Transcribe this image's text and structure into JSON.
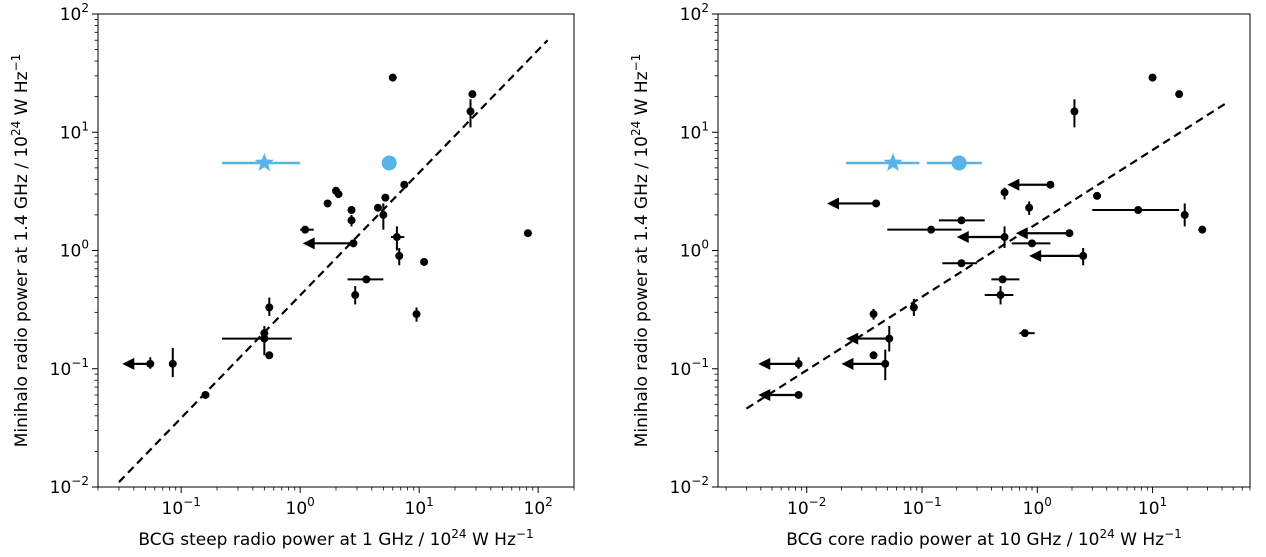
{
  "chart_data": [
    {
      "type": "scatter",
      "panel": "left",
      "xscale": "log",
      "yscale": "log",
      "xlim": [
        0.02,
        200
      ],
      "ylim": [
        0.01,
        100
      ],
      "xticks": [
        {
          "value": 0.1,
          "mantissa": "10",
          "exp": "−1"
        },
        {
          "value": 1,
          "mantissa": "10",
          "exp": "0"
        },
        {
          "value": 10,
          "mantissa": "10",
          "exp": "1"
        },
        {
          "value": 100,
          "mantissa": "10",
          "exp": "2"
        }
      ],
      "yticks": [
        {
          "value": 0.01,
          "mantissa": "10",
          "exp": "−2"
        },
        {
          "value": 0.1,
          "mantissa": "10",
          "exp": "−1"
        },
        {
          "value": 1,
          "mantissa": "10",
          "exp": "0"
        },
        {
          "value": 10,
          "mantissa": "10",
          "exp": "1"
        },
        {
          "value": 100,
          "mantissa": "10",
          "exp": "2"
        }
      ],
      "xlabel": {
        "pre": "BCG steep radio power at 1 GHz / 10",
        "sup": "24",
        "post": " W Hz",
        "sup2": "−1"
      },
      "ylabel": {
        "pre": "Minihalo radio power at 1.4 GHz / 10",
        "sup": "24",
        "post": " W Hz",
        "sup2": "−1"
      },
      "fit_line": {
        "style": "dashed",
        "x": [
          0.03,
          120
        ],
        "y": [
          0.011,
          60
        ]
      },
      "colors": {
        "black": "#000000",
        "highlight": "#56b4e9"
      },
      "points": [
        {
          "x": 0.16,
          "y": 0.06
        },
        {
          "x": 0.085,
          "y": 0.11,
          "yerr": [
            0.085,
            0.15
          ]
        },
        {
          "x": 0.055,
          "y": 0.11,
          "yerr": [
            0.1,
            0.125
          ],
          "upper_x": true,
          "arrow_to": 0.032
        },
        {
          "x": 0.5,
          "y": 0.18,
          "xerr": [
            0.22,
            0.85
          ],
          "yerr": [
            0.13,
            0.23
          ]
        },
        {
          "x": 0.55,
          "y": 0.13
        },
        {
          "x": 0.55,
          "y": 0.33,
          "yerr": [
            0.28,
            0.4
          ]
        },
        {
          "x": 0.5,
          "y": 0.2
        },
        {
          "x": 1.1,
          "y": 1.5,
          "xerr": [
            1.0,
            1.3
          ]
        },
        {
          "x": 2.8,
          "y": 1.15,
          "upper_x": true,
          "arrow_to": 1.05
        },
        {
          "x": 2.7,
          "y": 1.8,
          "yerr": [
            1.6,
            2.0
          ]
        },
        {
          "x": 2.7,
          "y": 2.2
        },
        {
          "x": 1.7,
          "y": 2.5
        },
        {
          "x": 2.1,
          "y": 3.0
        },
        {
          "x": 2.0,
          "y": 3.2
        },
        {
          "x": 3.6,
          "y": 0.57,
          "xerr": [
            2.5,
            5.0
          ]
        },
        {
          "x": 2.9,
          "y": 0.42,
          "yerr": [
            0.35,
            0.5
          ]
        },
        {
          "x": 4.5,
          "y": 2.3
        },
        {
          "x": 5.0,
          "y": 2.0,
          "yerr": [
            1.5,
            2.5
          ]
        },
        {
          "x": 5.2,
          "y": 2.8
        },
        {
          "x": 6.5,
          "y": 1.3,
          "xerr": [
            5.8,
            7.5
          ],
          "yerr": [
            1.0,
            1.6
          ]
        },
        {
          "x": 6.8,
          "y": 0.9,
          "yerr": [
            0.75,
            1.05
          ]
        },
        {
          "x": 7.5,
          "y": 3.6
        },
        {
          "x": 11,
          "y": 0.8
        },
        {
          "x": 9.5,
          "y": 0.29,
          "yerr": [
            0.25,
            0.33
          ]
        },
        {
          "x": 6.0,
          "y": 29
        },
        {
          "x": 27,
          "y": 15,
          "yerr": [
            11,
            19
          ]
        },
        {
          "x": 28,
          "y": 21
        },
        {
          "x": 82,
          "y": 1.4
        }
      ],
      "highlight_points": [
        {
          "x": 0.5,
          "y": 5.5,
          "marker": "star",
          "xerr": [
            0.22,
            1.0
          ]
        },
        {
          "x": 5.6,
          "y": 5.5,
          "marker": "circle"
        }
      ]
    },
    {
      "type": "scatter",
      "panel": "right",
      "xscale": "log",
      "yscale": "log",
      "xlim": [
        0.0017,
        70
      ],
      "ylim": [
        0.01,
        100
      ],
      "xticks": [
        {
          "value": 0.01,
          "mantissa": "10",
          "exp": "−2"
        },
        {
          "value": 0.1,
          "mantissa": "10",
          "exp": "−1"
        },
        {
          "value": 1,
          "mantissa": "10",
          "exp": "0"
        },
        {
          "value": 10,
          "mantissa": "10",
          "exp": "1"
        }
      ],
      "yticks": [
        {
          "value": 0.01,
          "mantissa": "10",
          "exp": "−2"
        },
        {
          "value": 0.1,
          "mantissa": "10",
          "exp": "−1"
        },
        {
          "value": 1,
          "mantissa": "10",
          "exp": "0"
        },
        {
          "value": 10,
          "mantissa": "10",
          "exp": "1"
        },
        {
          "value": 100,
          "mantissa": "10",
          "exp": "2"
        }
      ],
      "xlabel": {
        "pre": "BCG core radio power at 10 GHz / 10",
        "sup": "24",
        "post": " W Hz",
        "sup2": "−1"
      },
      "ylabel": {
        "pre": "Minihalo radio power at 1.4 GHz / 10",
        "sup": "24",
        "post": " W Hz",
        "sup2": "−1"
      },
      "fit_line": {
        "style": "dashed",
        "x": [
          0.003,
          45
        ],
        "y": [
          0.046,
          18
        ]
      },
      "colors": {
        "black": "#000000",
        "highlight": "#56b4e9"
      },
      "points": [
        {
          "x": 0.0085,
          "y": 0.06,
          "upper_x": true,
          "arrow_to": 0.0038
        },
        {
          "x": 0.0085,
          "y": 0.11,
          "upper_x": true,
          "arrow_to": 0.0038,
          "yerr": [
            0.1,
            0.125
          ]
        },
        {
          "x": 0.048,
          "y": 0.11,
          "upper_x": true,
          "arrow_to": 0.02,
          "yerr": [
            0.08,
            0.145
          ]
        },
        {
          "x": 0.052,
          "y": 0.18,
          "upper_x": true,
          "arrow_to": 0.022,
          "yerr": [
            0.14,
            0.23
          ]
        },
        {
          "x": 0.038,
          "y": 0.13
        },
        {
          "x": 0.038,
          "y": 0.29,
          "yerr": [
            0.26,
            0.32
          ]
        },
        {
          "x": 0.085,
          "y": 0.33,
          "yerr": [
            0.28,
            0.39
          ]
        },
        {
          "x": 0.04,
          "y": 2.5,
          "upper_x": true,
          "arrow_to": 0.015
        },
        {
          "x": 0.12,
          "y": 1.5,
          "xerr": [
            0.05,
            0.22
          ]
        },
        {
          "x": 0.22,
          "y": 1.8,
          "xerr": [
            0.14,
            0.35
          ]
        },
        {
          "x": 0.22,
          "y": 0.78,
          "xerr": [
            0.15,
            0.3
          ]
        },
        {
          "x": 0.52,
          "y": 1.3,
          "upper_x": true,
          "arrow_to": 0.2,
          "yerr": [
            1.05,
            1.6
          ]
        },
        {
          "x": 1.9,
          "y": 1.4,
          "upper_x": true,
          "arrow_to": 0.65
        },
        {
          "x": 0.9,
          "y": 1.15,
          "xerr": [
            0.6,
            1.3
          ]
        },
        {
          "x": 0.85,
          "y": 2.3,
          "yerr": [
            2.0,
            2.6
          ]
        },
        {
          "x": 0.52,
          "y": 3.1,
          "yerr": [
            2.7,
            3.4
          ]
        },
        {
          "x": 1.3,
          "y": 3.6,
          "upper_x": true,
          "arrow_to": 0.55
        },
        {
          "x": 2.5,
          "y": 0.9,
          "upper_x": true,
          "arrow_to": 0.85,
          "yerr": [
            0.75,
            1.05
          ]
        },
        {
          "x": 0.5,
          "y": 0.57,
          "xerr": [
            0.4,
            0.7
          ]
        },
        {
          "x": 0.48,
          "y": 0.42,
          "xerr": [
            0.35,
            0.62
          ],
          "yerr": [
            0.35,
            0.5
          ]
        },
        {
          "x": 0.78,
          "y": 0.2,
          "xerr": [
            0.7,
            0.95
          ]
        },
        {
          "x": 2.1,
          "y": 15,
          "yerr": [
            11,
            19
          ]
        },
        {
          "x": 3.3,
          "y": 2.9
        },
        {
          "x": 7.5,
          "y": 2.2,
          "xerr": [
            3.0,
            17
          ]
        },
        {
          "x": 10,
          "y": 29
        },
        {
          "x": 17,
          "y": 21
        },
        {
          "x": 19,
          "y": 2.0,
          "yerr": [
            1.6,
            2.5
          ]
        },
        {
          "x": 27,
          "y": 1.5
        }
      ],
      "highlight_points": [
        {
          "x": 0.056,
          "y": 5.5,
          "marker": "star",
          "xerr": [
            0.022,
            0.095
          ]
        },
        {
          "x": 0.21,
          "y": 5.5,
          "marker": "circle",
          "xerr": [
            0.11,
            0.33
          ]
        }
      ]
    }
  ]
}
